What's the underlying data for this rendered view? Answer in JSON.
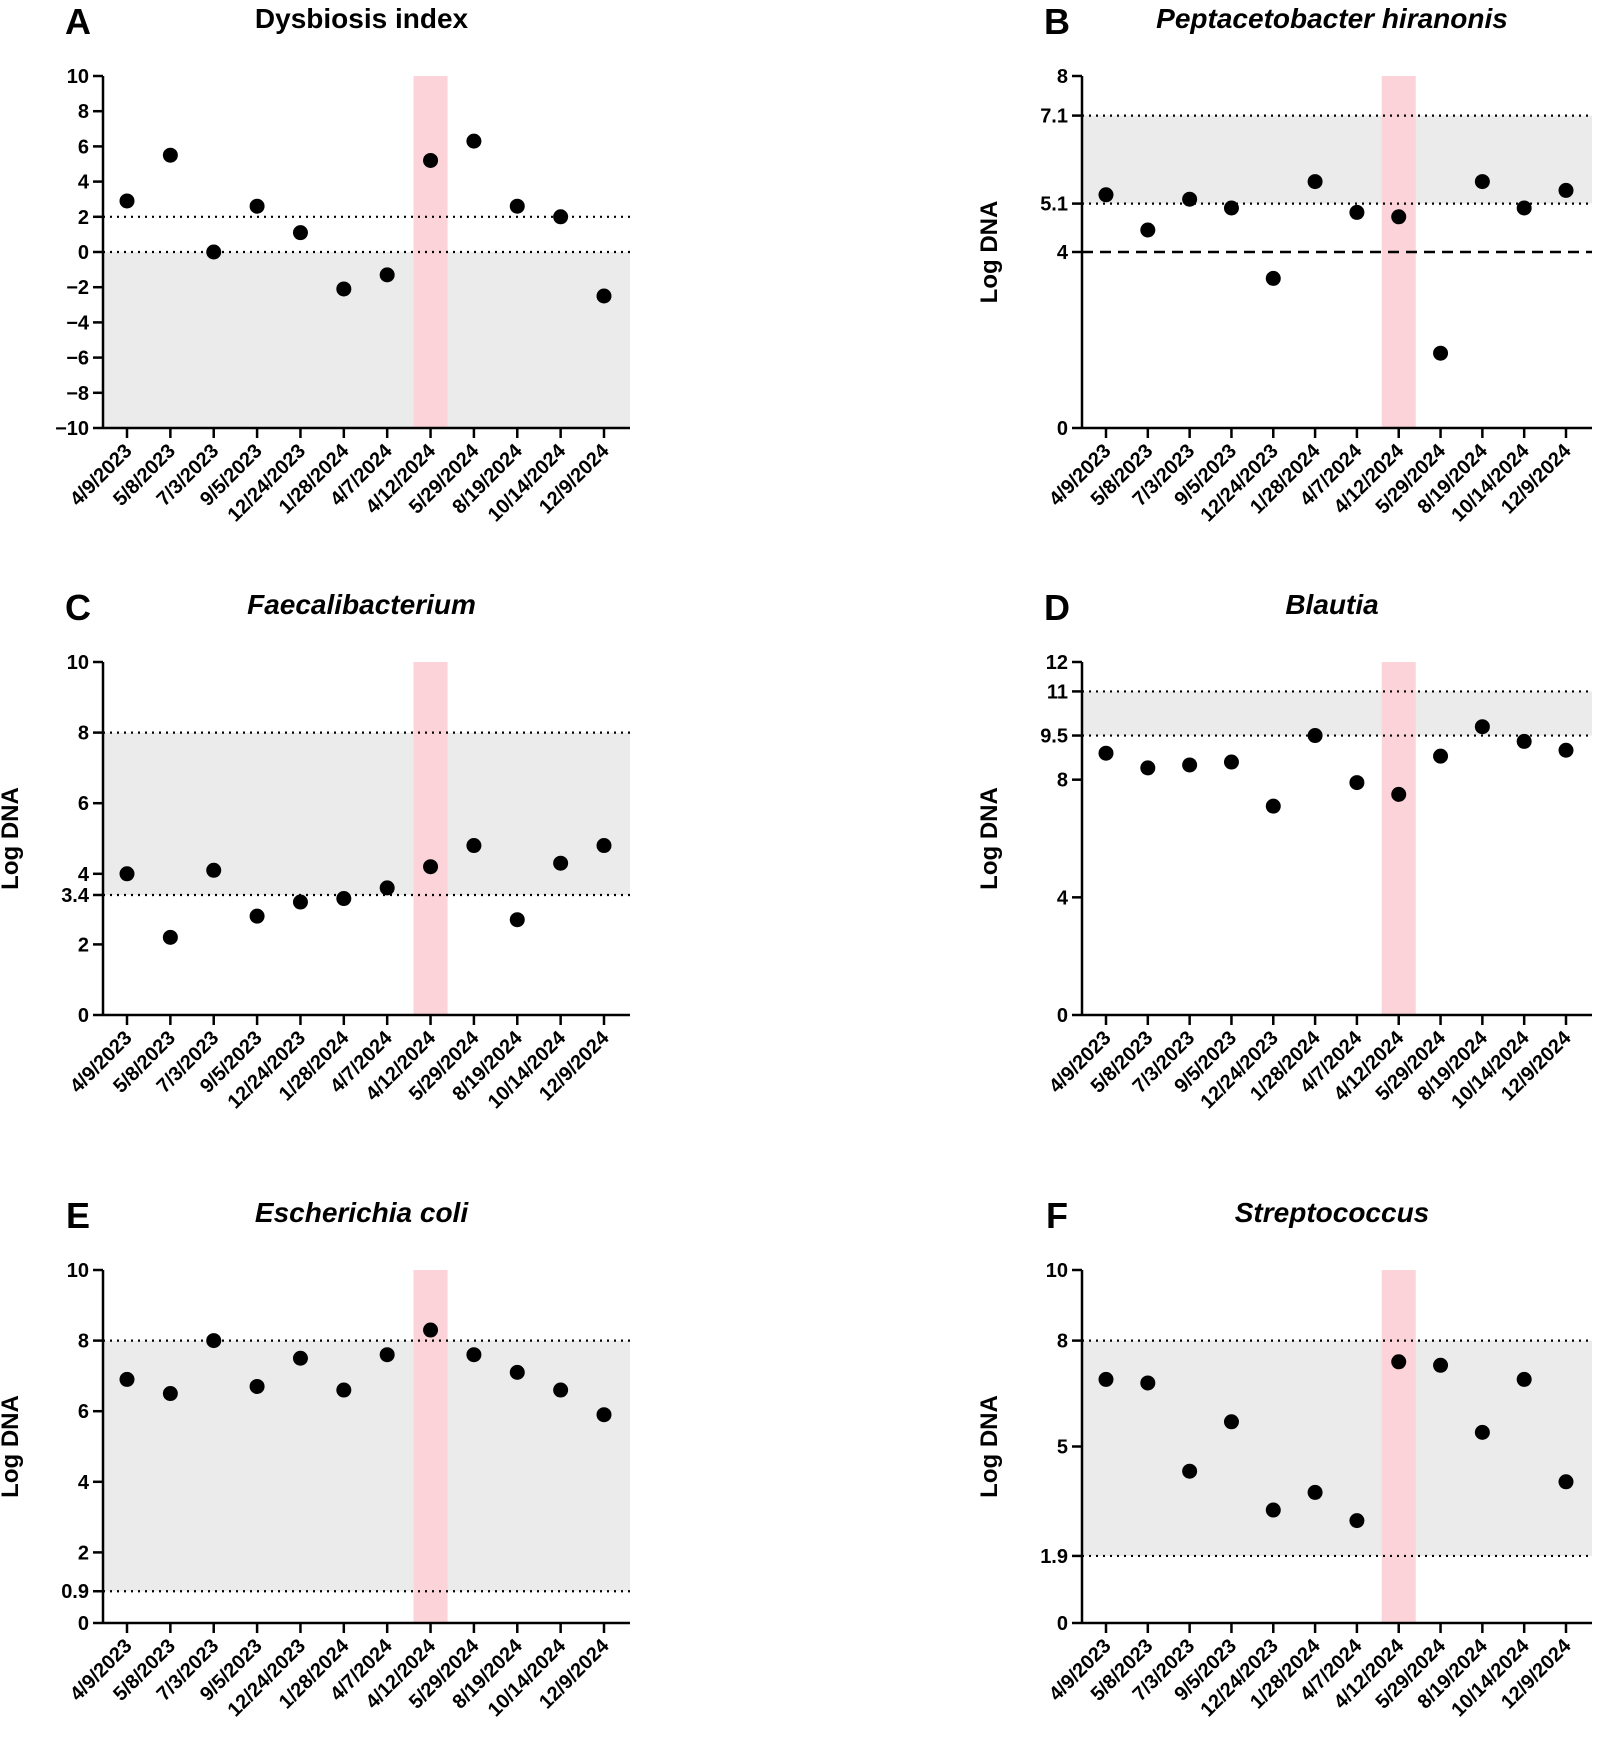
{
  "chart_data": [
    {
      "id": "A",
      "type": "scatter",
      "panel_letter": "A",
      "title": "Dysbiosis index",
      "title_italic": false,
      "ylabel": "",
      "ylim": [
        -10,
        10
      ],
      "yticks": [
        10,
        8,
        6,
        4,
        2,
        0,
        -2,
        -4,
        -6,
        -8,
        -10
      ],
      "ytick_labels": [
        "10",
        "8",
        "6",
        "4",
        "2",
        "0",
        "−2",
        "−4",
        "−6",
        "−8",
        "−10"
      ],
      "categories": [
        "4/9/2023",
        "5/8/2023",
        "7/3/2023",
        "9/5/2023",
        "12/24/2023",
        "1/28/2024",
        "4/7/2024",
        "4/12/2024",
        "5/29/2024",
        "8/19/2024",
        "10/14/2024",
        "12/9/2024"
      ],
      "values": [
        2.9,
        5.5,
        0,
        2.6,
        1.1,
        -2.1,
        -1.3,
        5.2,
        6.3,
        2.6,
        2.0,
        -2.5
      ],
      "reference_lines": [
        {
          "y": 2,
          "style": "dotted"
        },
        {
          "y": 0,
          "style": "dotted"
        }
      ],
      "shaded_range": [
        -10,
        0
      ],
      "highlight_category": "4/12/2024"
    },
    {
      "id": "B",
      "type": "scatter",
      "panel_letter": "B",
      "title": "Peptacetobacter hiranonis",
      "title_italic": true,
      "ylabel": "Log DNA",
      "ylim": [
        0,
        8
      ],
      "yticks": [
        8,
        7.1,
        5.1,
        4,
        0
      ],
      "ytick_labels": [
        "8",
        "7.1",
        "5.1",
        "4",
        "0"
      ],
      "categories": [
        "4/9/2023",
        "5/8/2023",
        "7/3/2023",
        "9/5/2023",
        "12/24/2023",
        "1/28/2024",
        "4/7/2024",
        "4/12/2024",
        "5/29/2024",
        "8/19/2024",
        "10/14/2024",
        "12/9/2024"
      ],
      "values": [
        5.3,
        4.5,
        5.2,
        5.0,
        3.4,
        5.6,
        4.9,
        4.8,
        1.7,
        5.6,
        5.0,
        5.4
      ],
      "reference_lines": [
        {
          "y": 7.1,
          "style": "dotted"
        },
        {
          "y": 5.1,
          "style": "dotted"
        },
        {
          "y": 4,
          "style": "dashed"
        }
      ],
      "shaded_range": [
        5.1,
        7.1
      ],
      "highlight_category": "4/12/2024"
    },
    {
      "id": "C",
      "type": "scatter",
      "panel_letter": "C",
      "title": "Faecalibacterium",
      "title_italic": true,
      "ylabel": "Log DNA",
      "ylim": [
        0,
        10
      ],
      "yticks": [
        10,
        8,
        6,
        4,
        3.4,
        2,
        0
      ],
      "ytick_labels": [
        "10",
        "8",
        "6",
        "4",
        "3.4",
        "2",
        "0"
      ],
      "categories": [
        "4/9/2023",
        "5/8/2023",
        "7/3/2023",
        "9/5/2023",
        "12/24/2023",
        "1/28/2024",
        "4/7/2024",
        "4/12/2024",
        "5/29/2024",
        "8/19/2024",
        "10/14/2024",
        "12/9/2024"
      ],
      "values": [
        4.0,
        2.2,
        4.1,
        2.8,
        3.2,
        3.3,
        3.6,
        4.2,
        4.8,
        2.7,
        4.3,
        4.8
      ],
      "reference_lines": [
        {
          "y": 8,
          "style": "dotted"
        },
        {
          "y": 3.4,
          "style": "dotted"
        }
      ],
      "shaded_range": [
        3.4,
        8
      ],
      "highlight_category": "4/12/2024"
    },
    {
      "id": "D",
      "type": "scatter",
      "panel_letter": "D",
      "title": "Blautia",
      "title_italic": true,
      "ylabel": "Log DNA",
      "ylim": [
        0,
        12
      ],
      "yticks": [
        12,
        11,
        9.5,
        8,
        4,
        0
      ],
      "ytick_labels": [
        "12",
        "11",
        "9.5",
        "8",
        "4",
        "0"
      ],
      "categories": [
        "4/9/2023",
        "5/8/2023",
        "7/3/2023",
        "9/5/2023",
        "12/24/2023",
        "1/28/2024",
        "4/7/2024",
        "4/12/2024",
        "5/29/2024",
        "8/19/2024",
        "10/14/2024",
        "12/9/2024"
      ],
      "values": [
        8.9,
        8.4,
        8.5,
        8.6,
        7.1,
        9.5,
        7.9,
        7.5,
        8.8,
        9.8,
        9.3,
        9.0
      ],
      "reference_lines": [
        {
          "y": 11,
          "style": "dotted"
        },
        {
          "y": 9.5,
          "style": "dotted"
        }
      ],
      "shaded_range": [
        9.5,
        11
      ],
      "highlight_category": "4/12/2024"
    },
    {
      "id": "E",
      "type": "scatter",
      "panel_letter": "E",
      "title": "Escherichia coli",
      "title_italic": true,
      "ylabel": "Log DNA",
      "ylim": [
        0,
        10
      ],
      "yticks": [
        10,
        8,
        6,
        4,
        2,
        0.9,
        0
      ],
      "ytick_labels": [
        "10",
        "8",
        "6",
        "4",
        "2",
        "0.9",
        "0"
      ],
      "categories": [
        "4/9/2023",
        "5/8/2023",
        "7/3/2023",
        "9/5/2023",
        "12/24/2023",
        "1/28/2024",
        "4/7/2024",
        "4/12/2024",
        "5/29/2024",
        "8/19/2024",
        "10/14/2024",
        "12/9/2024"
      ],
      "values": [
        6.9,
        6.5,
        8.0,
        6.7,
        7.5,
        6.6,
        7.6,
        8.3,
        7.6,
        7.1,
        6.6,
        5.9
      ],
      "reference_lines": [
        {
          "y": 8,
          "style": "dotted"
        },
        {
          "y": 0.9,
          "style": "dotted"
        }
      ],
      "shaded_range": [
        0.9,
        8
      ],
      "highlight_category": "4/12/2024"
    },
    {
      "id": "F",
      "type": "scatter",
      "panel_letter": "F",
      "title": "Streptococcus",
      "title_italic": true,
      "ylabel": "Log DNA",
      "ylim": [
        0,
        10
      ],
      "yticks": [
        10,
        8,
        5,
        1.9,
        0
      ],
      "ytick_labels": [
        "10",
        "8",
        "5",
        "1.9",
        "0"
      ],
      "categories": [
        "4/9/2023",
        "5/8/2023",
        "7/3/2023",
        "9/5/2023",
        "12/24/2023",
        "1/28/2024",
        "4/7/2024",
        "4/12/2024",
        "5/29/2024",
        "8/19/2024",
        "10/14/2024",
        "12/9/2024"
      ],
      "values": [
        6.9,
        6.8,
        4.3,
        5.7,
        3.2,
        3.7,
        2.9,
        7.4,
        7.3,
        5.4,
        6.9,
        4.0
      ],
      "reference_lines": [
        {
          "y": 8,
          "style": "dotted"
        },
        {
          "y": 1.9,
          "style": "dotted"
        }
      ],
      "shaded_range": [
        1.9,
        8
      ],
      "highlight_category": "4/12/2024"
    }
  ],
  "style": {
    "shade_color": "#ebebeb",
    "highlight_color": "#fcd3d8",
    "point_color": "#000000",
    "axis_color": "#000000"
  }
}
